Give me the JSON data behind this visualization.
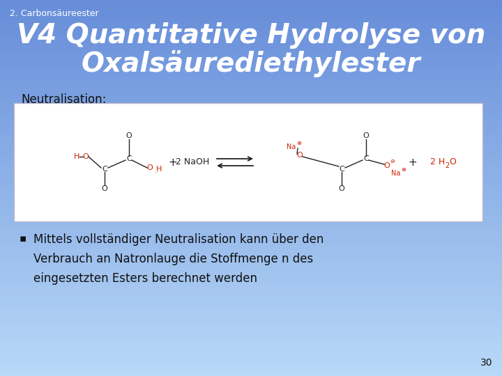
{
  "subtitle": "2. Carbonsäureester",
  "title_line1": "V4 Quantitative Hydrolyse von",
  "title_line2": "Oxalsäurediethylester",
  "neutralisation_label": "Neutralisation:",
  "bullet_text_line1": "Mittels vollständiger Neutralisation kann über den",
  "bullet_text_line2": "Verbrauch an Natronlauge die Stoffmenge n des",
  "bullet_text_line3": "eingesetzten Esters berechnet werden",
  "page_number": "30",
  "title_color": "#ffffff",
  "subtitle_color": "#ffffff",
  "body_text_color": "#111111",
  "box_bg": "#ffffff",
  "box_border": "#aaaacc",
  "chem_color": "#222222",
  "red_color": "#cc2200"
}
